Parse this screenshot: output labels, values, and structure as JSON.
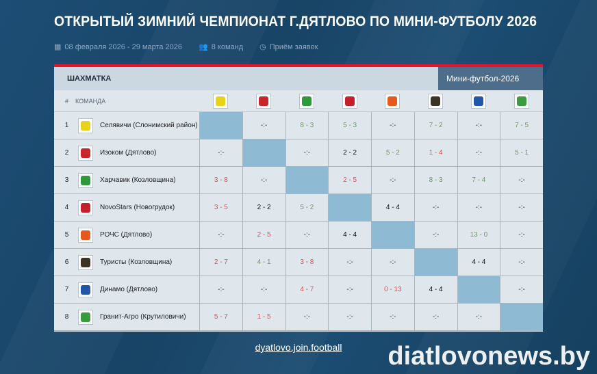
{
  "title": "ОТКРЫТЫЙ ЗИМНИЙ ЧЕМПИОНАТ Г.ДЯТЛОВО ПО МИНИ-ФУТБОЛУ 2026",
  "meta": {
    "dates": "08 февраля 2026 - 29 марта 2026",
    "teams_count": "8 команд",
    "status": "Приём заявок"
  },
  "table": {
    "title": "ШАХМАТКА",
    "league": "Мини-футбол-2026",
    "col_num": "#",
    "col_team": "КОМАНДА",
    "teams": [
      {
        "num": "1",
        "name": "Селявичи (Слонимский район)",
        "logo_color": "#e8d21a"
      },
      {
        "num": "2",
        "name": "Изоком (Дятлово)",
        "logo_color": "#c8262b"
      },
      {
        "num": "3",
        "name": "Харчавик (Козловщина)",
        "logo_color": "#2f9a3a"
      },
      {
        "num": "4",
        "name": "NovoStars (Новогрудок)",
        "logo_color": "#c51f2e"
      },
      {
        "num": "5",
        "name": "РОЧС (Дятлово)",
        "logo_color": "#e55a1c"
      },
      {
        "num": "6",
        "name": "Туристы (Козловщина)",
        "logo_color": "#3a3326"
      },
      {
        "num": "7",
        "name": "Динамо (Дятлово)",
        "logo_color": "#1f56a8"
      },
      {
        "num": "8",
        "name": "Гранит-Агро (Крутиловичи)",
        "logo_color": "#3b9b3f"
      }
    ],
    "results": [
      [
        "",
        "-:-",
        "8 - 3",
        "5 - 3",
        "-:-",
        "7 - 2",
        "-:-",
        "7 - 5"
      ],
      [
        "-:-",
        "",
        "-:-",
        "2 - 2",
        "5 - 2",
        "1 - 4",
        "-:-",
        "5 - 1"
      ],
      [
        "3 - 8",
        "-:-",
        "",
        "2 - 5",
        "-:-",
        "8 - 3",
        "7 - 4",
        "-:-"
      ],
      [
        "3 - 5",
        "2 - 2",
        "5 - 2",
        "",
        "4 - 4",
        "-:-",
        "-:-",
        "-:-"
      ],
      [
        "-:-",
        "2 - 5",
        "-:-",
        "4 - 4",
        "",
        "-:-",
        "13 - 0",
        "-:-"
      ],
      [
        "2 - 7",
        "4 - 1",
        "3 - 8",
        "-:-",
        "-:-",
        "",
        "4 - 4",
        "-:-"
      ],
      [
        "-:-",
        "-:-",
        "4 - 7",
        "-:-",
        "0 - 13",
        "4 - 4",
        "",
        "-:-"
      ],
      [
        "5 - 7",
        "1 - 5",
        "-:-",
        "-:-",
        "-:-",
        "-:-",
        "-:-",
        ""
      ]
    ]
  },
  "colors": {
    "win": "#6b9a5c",
    "loss": "#e05050",
    "diagonal": "#8fbad3",
    "accent": "#e3142b"
  },
  "footer_link": "dyatlovo.join.football",
  "watermark": "diatlovonews.by"
}
